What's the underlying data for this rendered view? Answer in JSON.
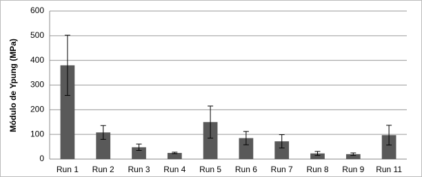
{
  "chart_data": {
    "type": "bar",
    "y_label": "Módulo de Ypung (MPa)",
    "categories": [
      "Run 1",
      "Run 2",
      "Run 3",
      "Run 4",
      "Run 5",
      "Run 6",
      "Run 7",
      "Run 8",
      "Run 9",
      "Run 11"
    ],
    "values": [
      380,
      108,
      48,
      25,
      150,
      85,
      72,
      23,
      20,
      97
    ],
    "errors": [
      122,
      28,
      13,
      3,
      65,
      27,
      27,
      8,
      5,
      40
    ],
    "color": "#595959",
    "ylim": [
      0,
      600
    ],
    "yticks": [
      0,
      100,
      200,
      300,
      400,
      500,
      600
    ],
    "grid": true
  }
}
